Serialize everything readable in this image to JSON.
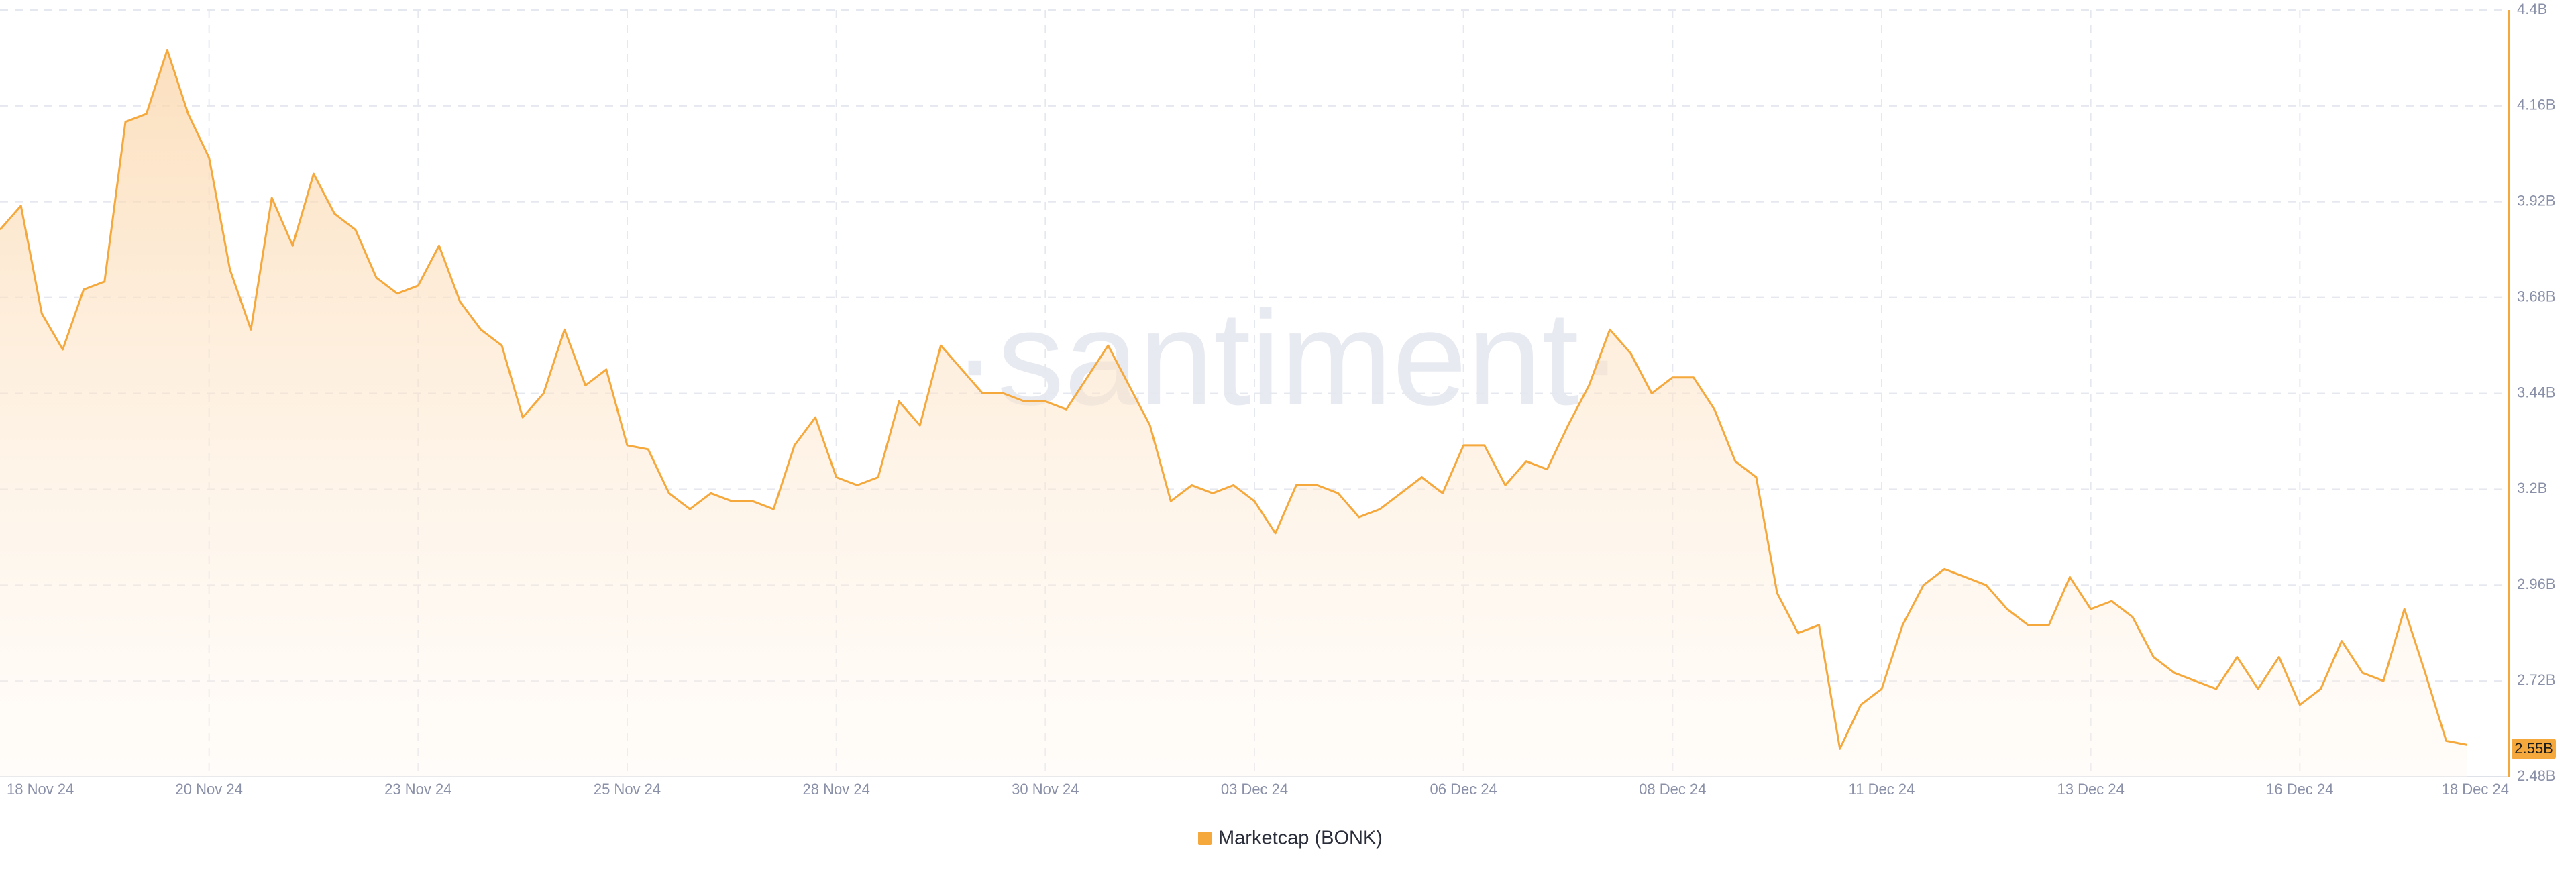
{
  "chart_data": {
    "type": "area",
    "watermark": "·santiment·",
    "categories": [
      "18 Nov 24",
      null,
      null,
      null,
      null,
      null,
      null,
      null,
      null,
      null,
      "20 Nov 24",
      null,
      null,
      null,
      null,
      null,
      null,
      null,
      null,
      null,
      "23 Nov 24",
      null,
      null,
      null,
      null,
      null,
      null,
      null,
      null,
      null,
      "25 Nov 24",
      null,
      null,
      null,
      null,
      null,
      null,
      null,
      null,
      null,
      "28 Nov 24",
      null,
      null,
      null,
      null,
      null,
      null,
      null,
      null,
      null,
      "30 Nov 24",
      null,
      null,
      null,
      null,
      null,
      null,
      null,
      null,
      null,
      "03 Dec 24",
      null,
      null,
      null,
      null,
      null,
      null,
      null,
      null,
      null,
      "06 Dec 24",
      null,
      null,
      null,
      null,
      null,
      null,
      null,
      null,
      null,
      "08 Dec 24",
      null,
      null,
      null,
      null,
      null,
      null,
      null,
      null,
      null,
      "11 Dec 24",
      null,
      null,
      null,
      null,
      null,
      null,
      null,
      null,
      null,
      "13 Dec 24",
      null,
      null,
      null,
      null,
      null,
      null,
      null,
      null,
      null,
      "16 Dec 24",
      null,
      null,
      null,
      null,
      null,
      null,
      null,
      null,
      null,
      "18 Dec 24"
    ],
    "series": [
      {
        "name": "Marketcap (BONK)",
        "color": "#f5a83c",
        "values": [
          3.85,
          3.91,
          3.64,
          3.55,
          3.7,
          3.72,
          4.12,
          4.14,
          4.3,
          4.14,
          4.03,
          3.75,
          3.6,
          3.93,
          3.81,
          3.99,
          3.89,
          3.85,
          3.73,
          3.69,
          3.71,
          3.81,
          3.67,
          3.6,
          3.56,
          3.38,
          3.44,
          3.6,
          3.46,
          3.5,
          3.31,
          3.3,
          3.19,
          3.15,
          3.19,
          3.17,
          3.17,
          3.15,
          3.31,
          3.38,
          3.23,
          3.21,
          3.23,
          3.42,
          3.36,
          3.56,
          3.5,
          3.44,
          3.44,
          3.42,
          3.42,
          3.4,
          3.48,
          3.56,
          3.46,
          3.36,
          3.17,
          3.21,
          3.19,
          3.21,
          3.17,
          3.09,
          3.21,
          3.21,
          3.19,
          3.13,
          3.15,
          3.19,
          3.23,
          3.19,
          3.31,
          3.31,
          3.21,
          3.27,
          3.25,
          3.36,
          3.46,
          3.6,
          3.54,
          3.44,
          3.48,
          3.48,
          3.4,
          3.27,
          3.23,
          2.94,
          2.84,
          2.86,
          2.55,
          2.66,
          2.7,
          2.86,
          2.96,
          3.0,
          2.98,
          2.96,
          2.9,
          2.86,
          2.86,
          2.98,
          2.9,
          2.92,
          2.88,
          2.78,
          2.74,
          2.72,
          2.7,
          2.78,
          2.7,
          2.78,
          2.66,
          2.7,
          2.82,
          2.74,
          2.72,
          2.9,
          2.74,
          2.57,
          2.56,
          null,
          null
        ]
      }
    ],
    "ylim": [
      2.48,
      4.4
    ],
    "yticks": [
      {
        "value": 2.48,
        "label": "2.48B"
      },
      {
        "value": 2.72,
        "label": "2.72B"
      },
      {
        "value": 2.96,
        "label": "2.96B"
      },
      {
        "value": 3.2,
        "label": "3.2B"
      },
      {
        "value": 3.44,
        "label": "3.44B"
      },
      {
        "value": 3.68,
        "label": "3.68B"
      },
      {
        "value": 3.92,
        "label": "3.92B"
      },
      {
        "value": 4.16,
        "label": "4.16B"
      },
      {
        "value": 4.4,
        "label": "4.4B"
      }
    ],
    "current_value": {
      "value": 2.55,
      "label": "2.55B"
    },
    "grid": true,
    "legend": "bottom"
  }
}
